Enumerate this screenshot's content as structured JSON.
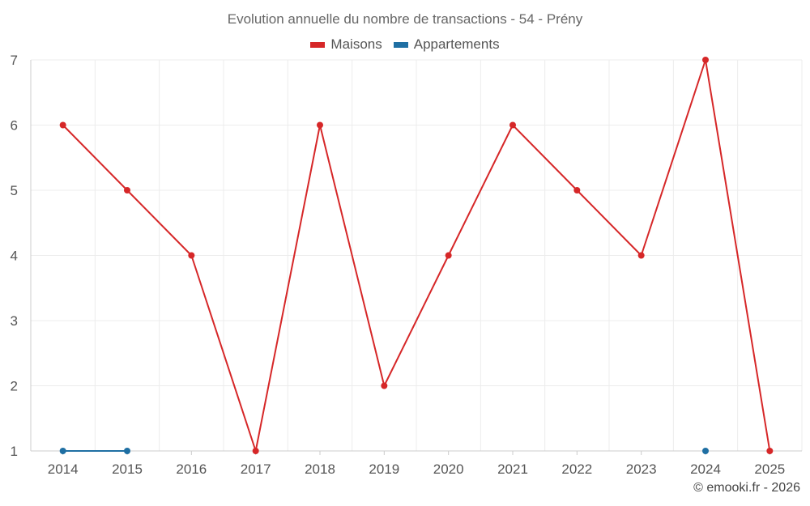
{
  "chart_data": {
    "type": "line",
    "title": "Evolution annuelle du nombre de transactions - 54 - Prény",
    "categories": [
      "2014",
      "2015",
      "2016",
      "2017",
      "2018",
      "2019",
      "2020",
      "2021",
      "2022",
      "2023",
      "2024",
      "2025"
    ],
    "ylim": [
      1,
      7
    ],
    "yticks": [
      1,
      2,
      3,
      4,
      5,
      6,
      7
    ],
    "grid": true,
    "legend_position": "top-center",
    "series": [
      {
        "name": "Maisons",
        "color": "#d62728",
        "values": [
          6,
          5,
          4,
          1,
          6,
          2,
          4,
          6,
          5,
          4,
          7,
          1
        ]
      },
      {
        "name": "Appartements",
        "color": "#1f6fa3",
        "values": [
          1,
          1,
          null,
          null,
          null,
          null,
          null,
          null,
          null,
          null,
          1,
          null
        ]
      }
    ]
  },
  "credit": "© emooki.fr - 2026"
}
